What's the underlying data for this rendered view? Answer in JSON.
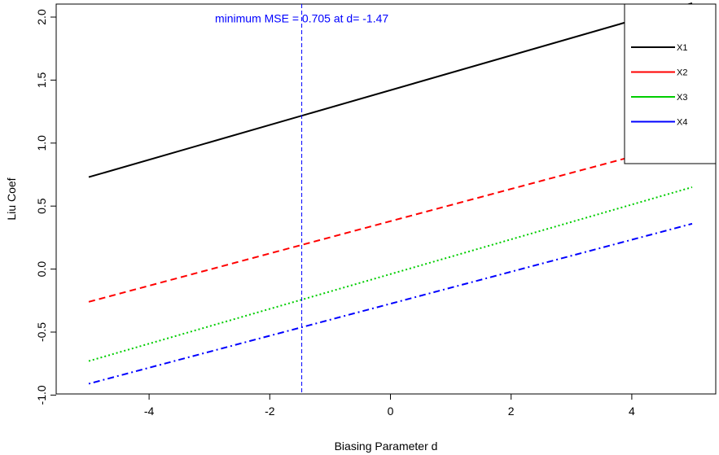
{
  "chart_data": {
    "type": "line",
    "xlabel": "Biasing Parameter d",
    "ylabel": "Liu Coef",
    "xlim": [
      -5,
      5
    ],
    "ylim": [
      -1.0,
      2.1
    ],
    "xticks": [
      -4,
      -2,
      0,
      2,
      4
    ],
    "xtick_labels": [
      "-4",
      "-2",
      "0",
      "2",
      "4"
    ],
    "yticks": [
      -1.0,
      -0.5,
      0.0,
      0.5,
      1.0,
      1.5,
      2.0
    ],
    "ytick_labels": [
      "-1.0",
      "-0.5",
      "0.0",
      "0.5",
      "1.0",
      "1.5",
      "2.0"
    ],
    "grid": false,
    "legend_position": "top-right",
    "series": [
      {
        "name": "X1",
        "color": "#000000",
        "dash": "solid",
        "x": [
          -5,
          5
        ],
        "y": [
          0.73,
          2.11
        ]
      },
      {
        "name": "X2",
        "color": "#ff0000",
        "dash": "dashed",
        "x": [
          -5,
          5
        ],
        "y": [
          -0.26,
          1.02
        ]
      },
      {
        "name": "X3",
        "color": "#00cd00",
        "dash": "dotted",
        "x": [
          -5,
          5
        ],
        "y": [
          -0.73,
          0.65
        ]
      },
      {
        "name": "X4",
        "color": "#0000ff",
        "dash": "dotdash",
        "x": [
          -5,
          5
        ],
        "y": [
          -0.91,
          0.36
        ]
      }
    ],
    "vline": {
      "x": -1.47,
      "color": "#0000ff",
      "dash": "dashed"
    },
    "annotation": {
      "text": "minimum MSE = 0.705 at d= -1.47",
      "color": "#0000ff",
      "x": -1.47,
      "y": 1.99
    }
  }
}
